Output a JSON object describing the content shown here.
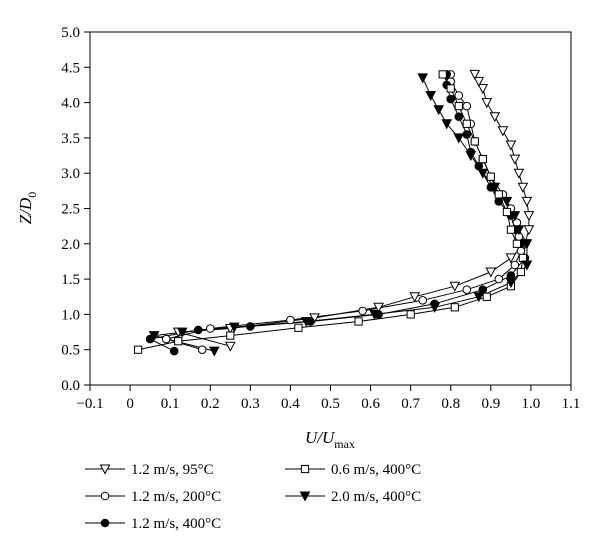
{
  "chart_data": {
    "type": "scatter",
    "xlabel": {
      "main": "U/U",
      "sub": "max"
    },
    "ylabel": {
      "main": "Z/D",
      "sub": "0"
    },
    "xlim": [
      -0.1,
      1.1
    ],
    "ylim": [
      0.0,
      5.0
    ],
    "xticks": [
      "−0.1",
      "0",
      "0.1",
      "0.2",
      "0.3",
      "0.4",
      "0.5",
      "0.6",
      "0.7",
      "0.8",
      "0.9",
      "1.0",
      "1.1"
    ],
    "yticks": [
      "0.0",
      "0.5",
      "1.0",
      "1.5",
      "2.0",
      "2.5",
      "3.0",
      "3.5",
      "4.0",
      "4.5",
      "5.0"
    ],
    "grid": false,
    "legend_position": "bottom",
    "series": [
      {
        "name": "1.2 m/s, 95°C",
        "marker": "triangle-down-open",
        "x": [
          0.25,
          0.12,
          0.25,
          0.46,
          0.62,
          0.71,
          0.81,
          0.9,
          0.95,
          0.985,
          0.995,
          0.995,
          0.99,
          0.98,
          0.97,
          0.96,
          0.95,
          0.93,
          0.91,
          0.89,
          0.88,
          0.87,
          0.86
        ],
        "y": [
          0.55,
          0.75,
          0.8,
          0.95,
          1.1,
          1.25,
          1.4,
          1.6,
          1.8,
          2.0,
          2.2,
          2.4,
          2.6,
          2.8,
          3.0,
          3.2,
          3.4,
          3.6,
          3.8,
          4.0,
          4.2,
          4.3,
          4.4
        ]
      },
      {
        "name": "1.2 m/s, 200°C",
        "marker": "circle-open",
        "x": [
          0.18,
          0.09,
          0.2,
          0.4,
          0.58,
          0.73,
          0.84,
          0.92,
          0.96,
          0.975,
          0.97,
          0.965,
          0.95,
          0.93,
          0.9,
          0.88,
          0.86,
          0.85,
          0.84,
          0.82,
          0.8,
          0.8
        ],
        "y": [
          0.5,
          0.65,
          0.8,
          0.92,
          1.05,
          1.2,
          1.35,
          1.5,
          1.7,
          1.9,
          2.1,
          2.3,
          2.5,
          2.7,
          2.95,
          3.2,
          3.45,
          3.7,
          3.95,
          4.1,
          4.3,
          4.4
        ]
      },
      {
        "name": "1.2 m/s, 400°C",
        "marker": "circle-filled",
        "x": [
          0.11,
          0.05,
          0.17,
          0.3,
          0.45,
          0.62,
          0.76,
          0.88,
          0.95,
          0.985,
          0.975,
          0.96,
          0.95,
          0.92,
          0.9,
          0.87,
          0.85,
          0.84,
          0.82,
          0.8,
          0.79,
          0.79
        ],
        "y": [
          0.48,
          0.65,
          0.78,
          0.83,
          0.9,
          1.0,
          1.15,
          1.35,
          1.55,
          1.8,
          2.0,
          2.2,
          2.4,
          2.6,
          2.8,
          3.1,
          3.3,
          3.55,
          3.8,
          4.05,
          4.25,
          4.4
        ]
      },
      {
        "name": "0.6 m/s, 400°C",
        "marker": "square-open",
        "x": [
          0.02,
          0.12,
          0.25,
          0.42,
          0.57,
          0.7,
          0.81,
          0.89,
          0.95,
          0.975,
          0.98,
          0.965,
          0.95,
          0.94,
          0.92,
          0.9,
          0.88,
          0.86,
          0.84,
          0.82,
          0.8,
          0.78
        ],
        "y": [
          0.5,
          0.62,
          0.7,
          0.81,
          0.9,
          1.0,
          1.1,
          1.25,
          1.4,
          1.6,
          1.8,
          2.0,
          2.2,
          2.45,
          2.7,
          2.95,
          3.2,
          3.45,
          3.7,
          3.95,
          4.2,
          4.4
        ]
      },
      {
        "name": "2.0 m/s, 400°C",
        "marker": "triangle-down-filled",
        "x": [
          0.21,
          0.06,
          0.13,
          0.26,
          0.44,
          0.61,
          0.76,
          0.87,
          0.95,
          0.99,
          0.99,
          0.97,
          0.96,
          0.94,
          0.91,
          0.88,
          0.85,
          0.82,
          0.79,
          0.77,
          0.75,
          0.73
        ],
        "y": [
          0.48,
          0.7,
          0.75,
          0.82,
          0.9,
          1.0,
          1.1,
          1.25,
          1.45,
          1.7,
          2.0,
          2.2,
          2.4,
          2.6,
          2.8,
          3.0,
          3.25,
          3.5,
          3.7,
          3.9,
          4.1,
          4.35
        ]
      }
    ]
  }
}
